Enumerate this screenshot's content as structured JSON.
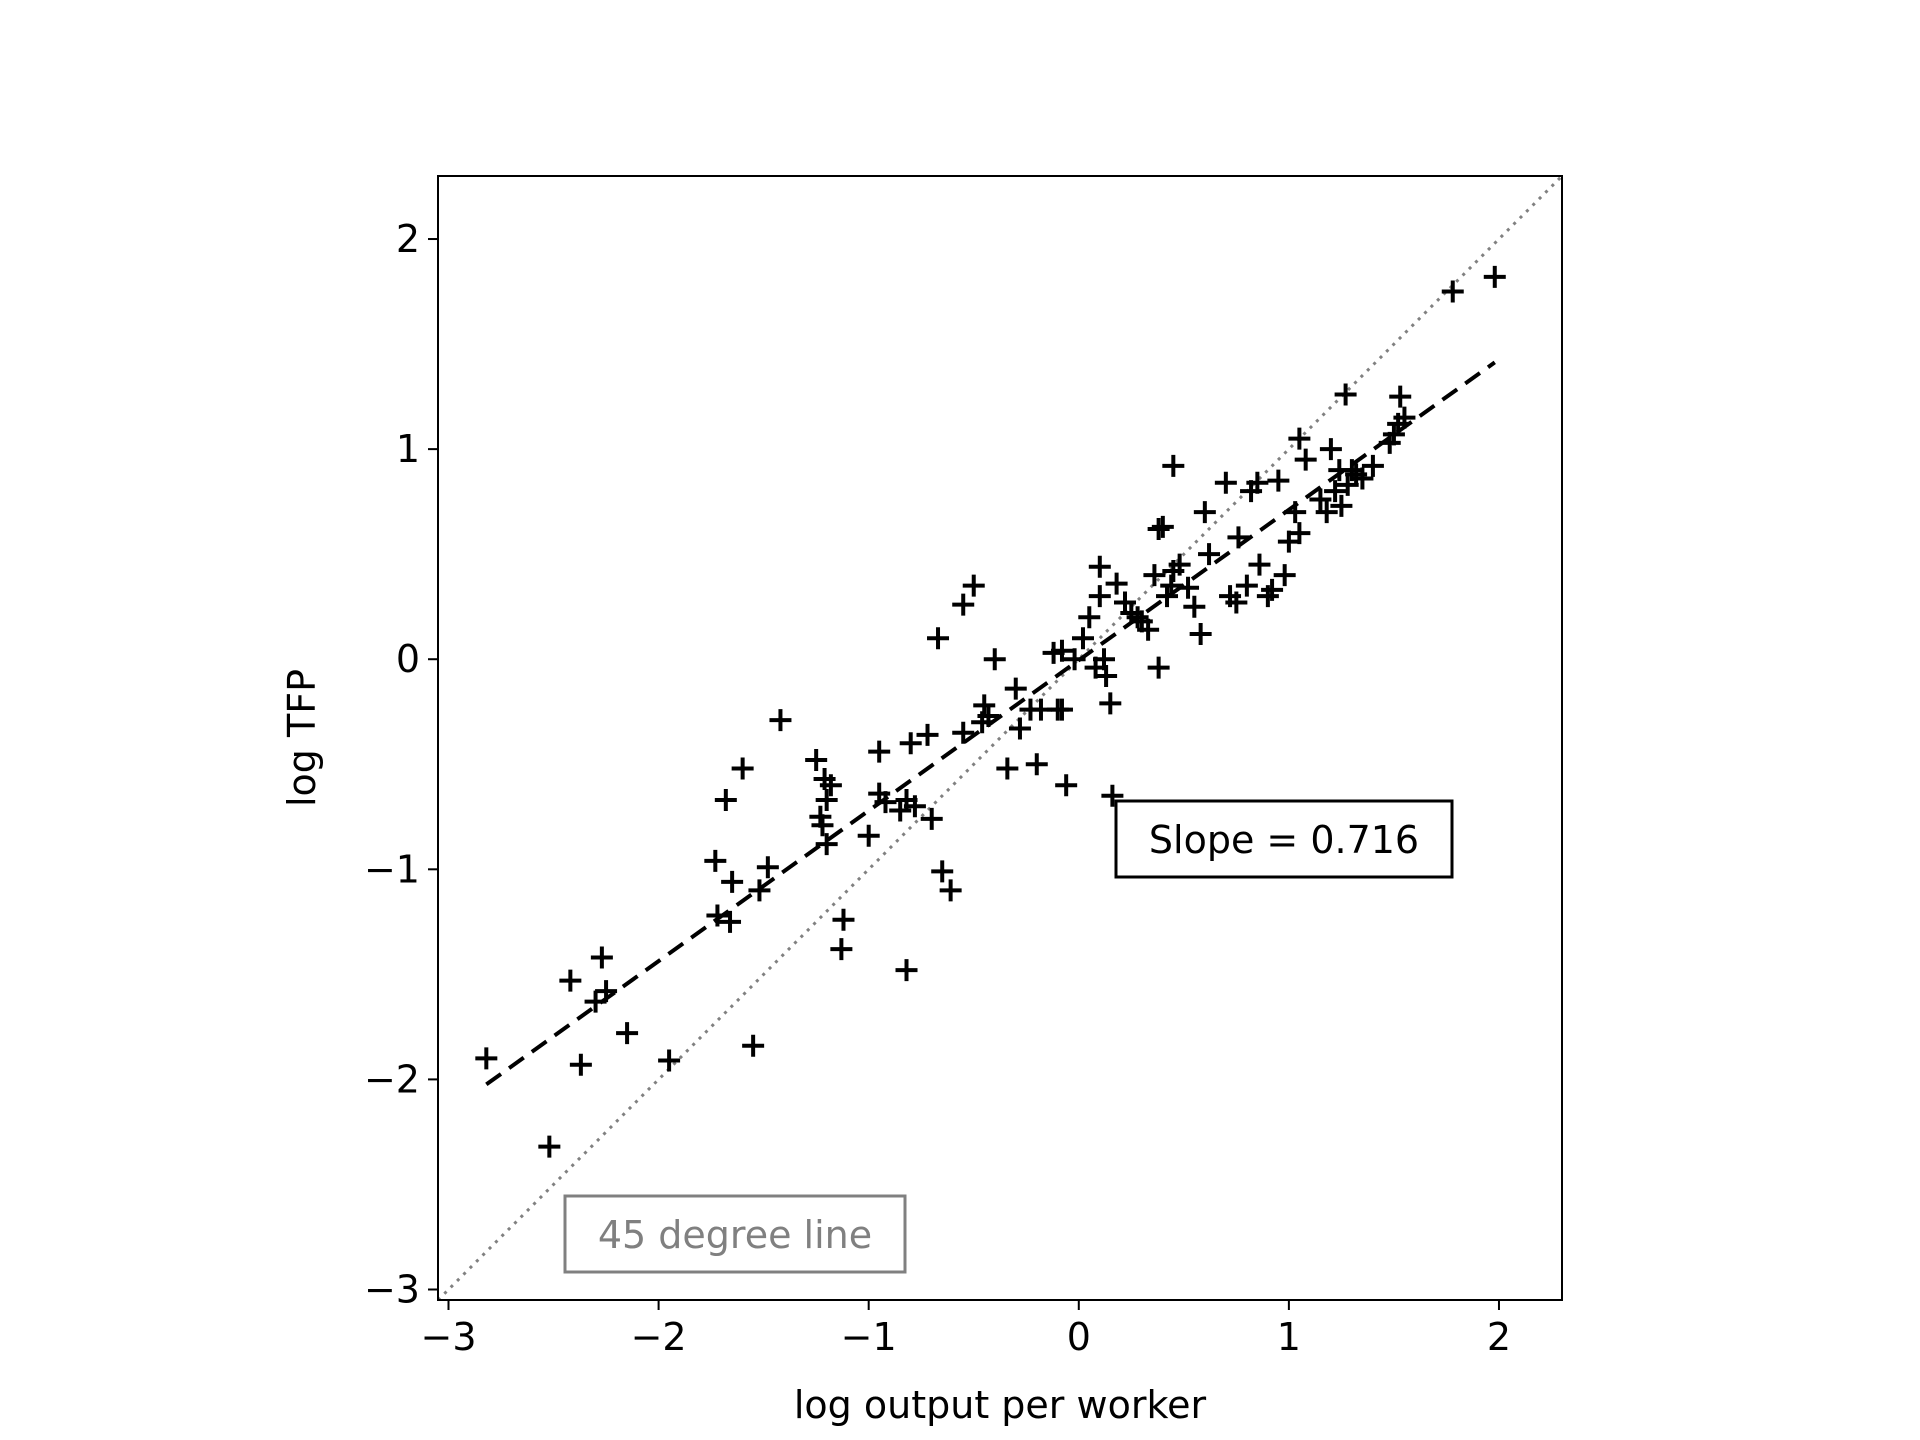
{
  "chart_data": {
    "type": "scatter",
    "title": "",
    "xlabel": "log output per worker",
    "ylabel": "log TFP",
    "xlim": [
      -3.05,
      2.3
    ],
    "ylim": [
      -3.05,
      2.3
    ],
    "x_ticks": [
      -3,
      -2,
      -1,
      0,
      1,
      2
    ],
    "y_ticks": [
      -3,
      -2,
      -1,
      0,
      1,
      2
    ],
    "x_tick_labels": [
      "−3",
      "−2",
      "−1",
      "0",
      "1",
      "2"
    ],
    "y_tick_labels": [
      "−3",
      "−2",
      "−1",
      "0",
      "1",
      "2"
    ],
    "grid": false,
    "marker": "+",
    "marker_color": "#000000",
    "series": [
      {
        "x": [
          -2.82,
          -2.52,
          -2.42,
          -2.37,
          -2.3,
          -2.27,
          -2.25,
          -2.15,
          -1.95,
          -1.55,
          -1.72,
          -1.73,
          -1.68,
          -1.65,
          -1.66,
          -1.6,
          -1.52,
          -1.48,
          -1.42,
          -1.25,
          -1.23,
          -1.21,
          -1.2,
          -1.2,
          -1.22,
          -1.18,
          -1.13,
          -1.12,
          -1.0,
          -0.95,
          -0.95,
          -0.92,
          -0.85,
          -0.82,
          -0.8,
          -0.78,
          -0.82,
          -0.72,
          -0.7,
          -0.67,
          -0.65,
          -0.61,
          -0.55,
          -0.55,
          -0.5,
          -0.46,
          -0.45,
          -0.43,
          -0.4,
          -0.34,
          -0.3,
          -0.28,
          -0.23,
          -0.2,
          -0.18,
          -0.12,
          -0.1,
          -0.08,
          -0.08,
          -0.06,
          -0.02,
          0.02,
          0.05,
          0.08,
          0.1,
          0.1,
          0.12,
          0.13,
          0.15,
          0.16,
          0.18,
          0.22,
          0.25,
          0.28,
          0.3,
          0.33,
          0.36,
          0.38,
          0.38,
          0.4,
          0.42,
          0.44,
          0.45,
          0.45,
          0.48,
          0.52,
          0.55,
          0.58,
          0.6,
          0.62,
          0.7,
          0.72,
          0.75,
          0.76,
          0.8,
          0.82,
          0.85,
          0.86,
          0.9,
          0.92,
          0.95,
          0.98,
          1.0,
          1.03,
          1.05,
          1.05,
          1.08,
          1.15,
          1.18,
          1.2,
          1.22,
          1.24,
          1.25,
          1.27,
          1.28,
          1.3,
          1.32,
          1.35,
          1.4,
          1.48,
          1.5,
          1.52,
          1.53,
          1.55,
          1.78,
          1.98
        ],
        "y": [
          -1.9,
          -2.32,
          -1.53,
          -1.93,
          -1.63,
          -1.42,
          -1.58,
          -1.78,
          -1.91,
          -1.84,
          -1.22,
          -0.96,
          -0.67,
          -1.06,
          -1.25,
          -0.52,
          -1.1,
          -0.99,
          -0.29,
          -0.48,
          -0.75,
          -0.57,
          -0.67,
          -0.88,
          -0.79,
          -0.6,
          -1.38,
          -1.24,
          -0.84,
          -0.44,
          -0.64,
          -0.68,
          -0.72,
          -1.48,
          -0.4,
          -0.7,
          -0.67,
          -0.36,
          -0.76,
          0.1,
          -1.01,
          -1.1,
          -0.35,
          0.26,
          0.35,
          -0.3,
          -0.22,
          -0.27,
          0.0,
          -0.52,
          -0.14,
          -0.33,
          -0.24,
          -0.5,
          -0.24,
          0.03,
          -0.24,
          0.04,
          -0.24,
          -0.6,
          0.0,
          0.1,
          0.2,
          -0.04,
          0.44,
          0.3,
          0.0,
          -0.08,
          -0.21,
          -0.65,
          0.36,
          0.27,
          0.22,
          0.2,
          0.18,
          0.14,
          0.4,
          -0.04,
          0.62,
          0.63,
          0.3,
          0.35,
          0.42,
          0.92,
          0.45,
          0.34,
          0.25,
          0.12,
          0.7,
          0.5,
          0.84,
          0.3,
          0.27,
          0.58,
          0.35,
          0.8,
          0.84,
          0.45,
          0.3,
          0.33,
          0.85,
          0.4,
          0.56,
          0.7,
          0.6,
          1.05,
          0.95,
          0.76,
          0.7,
          1.0,
          0.8,
          0.9,
          0.73,
          1.26,
          0.83,
          0.9,
          0.88,
          0.86,
          0.92,
          1.03,
          1.07,
          1.12,
          1.25,
          1.15,
          1.75,
          1.82
        ]
      }
    ],
    "fit_line": {
      "x": [
        -2.82,
        1.98
      ],
      "y": [
        -2.0239,
        1.4129
      ],
      "style": "dashed",
      "color": "#000000"
    },
    "reference_line": {
      "x": [
        -3.05,
        2.3
      ],
      "y": [
        -3.05,
        2.3
      ],
      "style": "dotted",
      "color": "#808080"
    },
    "annotations": [
      {
        "text": "Slope = 0.716",
        "color": "#000000"
      },
      {
        "text": "45 degree line",
        "color": "#808080"
      }
    ]
  }
}
